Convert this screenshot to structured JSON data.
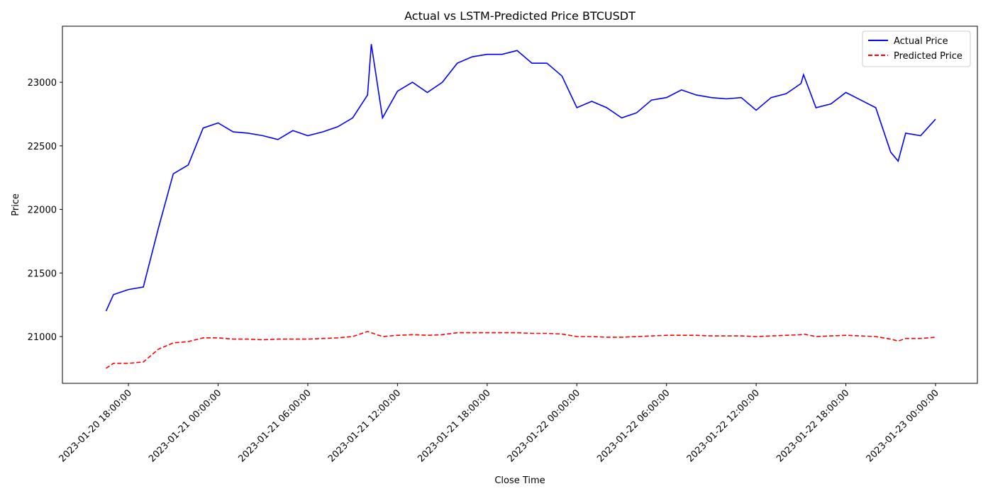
{
  "chart_data": {
    "type": "line",
    "title": "Actual vs LSTM-Predicted Price BTCUSDT",
    "x_label": "Close Time",
    "y_label": "Price",
    "x": [
      "2023-01-20 16:30:00",
      "2023-01-20 17:00:00",
      "2023-01-20 18:00:00",
      "2023-01-20 19:00:00",
      "2023-01-20 20:00:00",
      "2023-01-20 21:00:00",
      "2023-01-20 22:00:00",
      "2023-01-20 23:00:00",
      "2023-01-21 00:00:00",
      "2023-01-21 01:00:00",
      "2023-01-21 02:00:00",
      "2023-01-21 03:00:00",
      "2023-01-21 04:00:00",
      "2023-01-21 05:00:00",
      "2023-01-21 06:00:00",
      "2023-01-21 07:00:00",
      "2023-01-21 08:00:00",
      "2023-01-21 09:00:00",
      "2023-01-21 10:00:00",
      "2023-01-21 10:15:00",
      "2023-01-21 11:00:00",
      "2023-01-21 12:00:00",
      "2023-01-21 13:00:00",
      "2023-01-21 14:00:00",
      "2023-01-21 15:00:00",
      "2023-01-21 16:00:00",
      "2023-01-21 17:00:00",
      "2023-01-21 18:00:00",
      "2023-01-21 19:00:00",
      "2023-01-21 20:00:00",
      "2023-01-21 21:00:00",
      "2023-01-21 22:00:00",
      "2023-01-21 23:00:00",
      "2023-01-22 00:00:00",
      "2023-01-22 01:00:00",
      "2023-01-22 02:00:00",
      "2023-01-22 03:00:00",
      "2023-01-22 04:00:00",
      "2023-01-22 05:00:00",
      "2023-01-22 06:00:00",
      "2023-01-22 07:00:00",
      "2023-01-22 08:00:00",
      "2023-01-22 09:00:00",
      "2023-01-22 10:00:00",
      "2023-01-22 11:00:00",
      "2023-01-22 12:00:00",
      "2023-01-22 13:00:00",
      "2023-01-22 14:00:00",
      "2023-01-22 15:00:00",
      "2023-01-22 15:10:00",
      "2023-01-22 16:00:00",
      "2023-01-22 17:00:00",
      "2023-01-22 18:00:00",
      "2023-01-22 19:00:00",
      "2023-01-22 20:00:00",
      "2023-01-22 21:00:00",
      "2023-01-22 21:30:00",
      "2023-01-22 22:00:00",
      "2023-01-22 23:00:00",
      "2023-01-23 00:00:00"
    ],
    "series": [
      {
        "name": "Actual Price",
        "color": "#0000ff",
        "dash": false,
        "values": [
          21200,
          21330,
          21370,
          21390,
          21850,
          22280,
          22350,
          22640,
          22680,
          22610,
          22600,
          22580,
          22550,
          22620,
          22580,
          22610,
          22650,
          22720,
          22900,
          23300,
          22720,
          22930,
          23000,
          22920,
          23000,
          23150,
          23200,
          23220,
          23220,
          23250,
          23150,
          23150,
          23050,
          22800,
          22850,
          22800,
          22720,
          22760,
          22860,
          22880,
          22940,
          22900,
          22880,
          22870,
          22880,
          22780,
          22880,
          22910,
          22990,
          23060,
          22800,
          22830,
          22920,
          22860,
          22800,
          22450,
          22380,
          22600,
          22580,
          22710
        ]
      },
      {
        "name": "Predicted Price",
        "color": "#ff0000",
        "dash": true,
        "values": [
          20750,
          20790,
          20790,
          20800,
          20900,
          20950,
          20960,
          20990,
          20990,
          20980,
          20980,
          20975,
          20980,
          20980,
          20980,
          20985,
          20990,
          21000,
          21040,
          21030,
          21000,
          21010,
          21015,
          21010,
          21015,
          21030,
          21030,
          21030,
          21030,
          21030,
          21025,
          21025,
          21020,
          21000,
          21000,
          20995,
          20995,
          21000,
          21005,
          21010,
          21010,
          21010,
          21005,
          21005,
          21005,
          21000,
          21005,
          21010,
          21015,
          21020,
          21000,
          21005,
          21010,
          21005,
          21000,
          20980,
          20965,
          20985,
          20985,
          20995
        ]
      }
    ],
    "xlim": [
      "2023-01-20 13:35:00",
      "2023-01-23 02:48:00"
    ],
    "xticks": [
      "2023-01-20 18:00:00",
      "2023-01-21 00:00:00",
      "2023-01-21 06:00:00",
      "2023-01-21 12:00:00",
      "2023-01-21 18:00:00",
      "2023-01-22 00:00:00",
      "2023-01-22 06:00:00",
      "2023-01-22 12:00:00",
      "2023-01-22 18:00:00",
      "2023-01-23 00:00:00"
    ],
    "ylim": [
      20632,
      23441
    ],
    "yticks": [
      21000,
      21500,
      22000,
      22500,
      23000
    ],
    "legend": "upper right"
  }
}
